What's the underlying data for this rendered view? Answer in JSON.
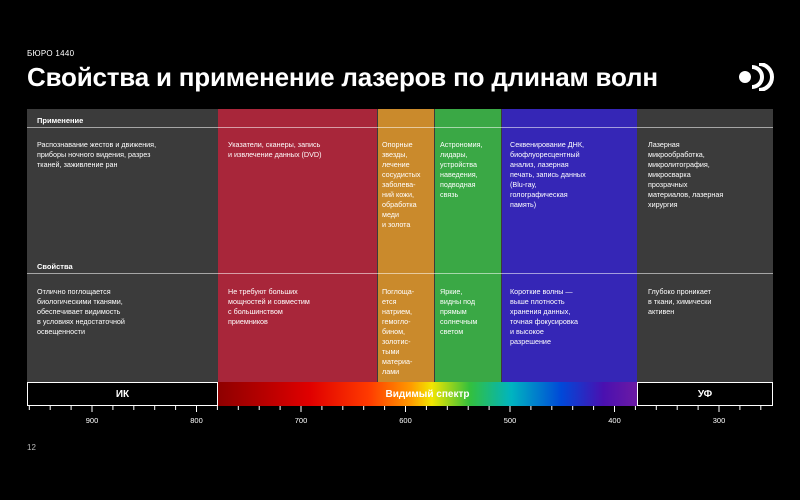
{
  "brand": "БЮРО 1440",
  "title": "Свойства и применение лазеров по длинам волн",
  "headers": {
    "application": "Применение",
    "properties": "Свойства"
  },
  "columns": [
    {
      "color": "#3b3b3b",
      "application": "Распознавание жестов и движения,\nприборы ночного видения, разрез\nтканей, заживление ран",
      "properties": "Отлично поглощается\nбиологическими тканями,\nобеспечивает видимость\nв условиях недостаточной\nосвещенности"
    },
    {
      "color": "#a8263a",
      "application": "Указатели, сканеры, запись\nи извлечение данных (DVD)",
      "properties": "Не требуют больших\nмощностей и совместим\nс большинством\nприемников"
    },
    {
      "color": "#ca8a2c",
      "application": "Опорные\nзвезды,\nлечение\nсосудистых\nзаболева-\nний кожи,\nобработка\nмеди\nи золота",
      "properties": "Поглоща-\nется\nнатрием,\nгемогло-\nбином,\nзолотис-\nтыми\nматериа-\nлами"
    },
    {
      "color": "#3aa845",
      "application": "Астрономия,\nлидары,\nустройства\nнаведения,\nподводная\nсвязь",
      "properties": "Яркие,\nвидны под\nпрямым\nсолнечным\nсветом"
    },
    {
      "color": "#3526b6",
      "application": "Секвенирование ДНК,\nбиофлуоресцентный\nанализ, лазерная\nпечать, запись данных\n(Blu-ray,\nголографическая\nпамять)",
      "properties": "Короткие волны —\nвыше плотность\nхранения данных,\nточная фокусировка\nи высокое\nразрешение"
    },
    {
      "color": "#3b3b3b",
      "application": "Лазерная\nмикрообработка,\nмикролитография,\nмикросварка\nпрозрачных\nматериалов, лазерная\nхирургия",
      "properties": "Глубоко проникает\nв ткани, химически\nактивен"
    }
  ],
  "spectrum": {
    "ir": "ИК",
    "visible": "Видимый спектр",
    "uv": "УФ"
  },
  "axis": {
    "labels": [
      "900",
      "800",
      "700",
      "600",
      "500",
      "400",
      "300"
    ]
  },
  "page_number": "12"
}
